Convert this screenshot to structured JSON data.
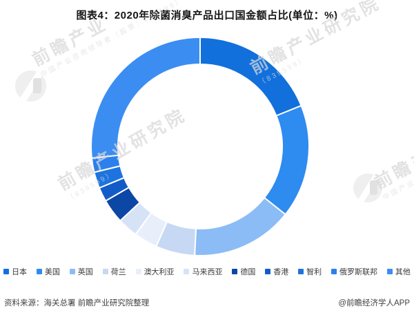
{
  "title": "图表4：2020年除菌消臭产品出口国金额占比(单位：%)",
  "chart_data": {
    "type": "pie",
    "subtype": "donut",
    "title": "图表4：2020年除菌消臭产品出口国金额占比(单位：%)",
    "unit": "%",
    "start_angle_deg": 0,
    "direction": "clockwise",
    "legend_position": "bottom",
    "inner_radius_ratio": 0.75,
    "labels": [
      "日本",
      "美国",
      "英国",
      "荷兰",
      "澳大利亚",
      "马来西亚",
      "德国",
      "香港",
      "智利",
      "俄罗斯联邦",
      "其他"
    ],
    "values": [
      18.9,
      16.8,
      15.1,
      5.8,
      3.5,
      3.0,
      3.6,
      2.1,
      2.4,
      2.1,
      26.7
    ],
    "colors": [
      "#1170DC",
      "#2E8BF0",
      "#8CBCF5",
      "#C6D8F3",
      "#E8EFFB",
      "#D6E3F7",
      "#0D47A6",
      "#135CC8",
      "#1E74DF",
      "#2C80EE",
      "#3B8DF2"
    ]
  },
  "footer": {
    "source": "资料来源：海关总署 前瞻产业研究院整理",
    "credit": "@前瞻经济学人APP"
  },
  "watermark": {
    "short": "前瞻产业",
    "brand": "前瞻产业研究院",
    "brand_tail": "研究院",
    "sub": "中国产业咨询领导者（股票：839599）",
    "stock": "（839599）"
  }
}
